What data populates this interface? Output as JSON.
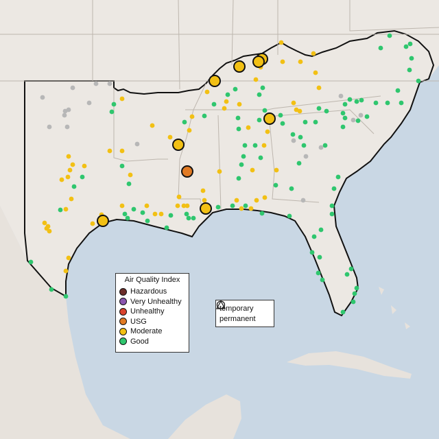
{
  "colors": {
    "hazardous": "#6b2e2a",
    "very_unhealthy": "#8a56b0",
    "unhealthy": "#d9432e",
    "usg": "#e07a24",
    "moderate": "#f2c014",
    "good": "#2fc66e",
    "no_data": "#b7b7b7",
    "water": "#c9d7e4",
    "land": "#ece8e3"
  },
  "legend": {
    "title": "Air Quality Index",
    "items": [
      {
        "label": "Hazardous",
        "color": "#6b2e2a"
      },
      {
        "label": "Very Unhealthy",
        "color": "#8a56b0"
      },
      {
        "label": "Unhealthy",
        "color": "#d9432e"
      },
      {
        "label": "USG",
        "color": "#e07a24"
      },
      {
        "label": "Moderate",
        "color": "#f2c014"
      },
      {
        "label": "Good",
        "color": "#2fc66e"
      }
    ]
  },
  "monitor_legend": {
    "temporary": "temporary",
    "permanent": "permanent"
  }
}
